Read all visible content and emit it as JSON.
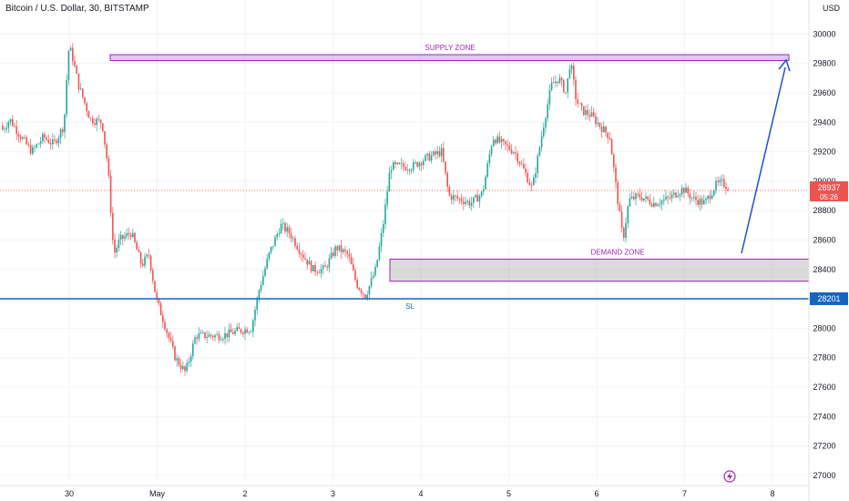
{
  "header": {
    "title": "Bitcoin / U.S. Dollar, 30, BITSTAMP",
    "currency": "USD"
  },
  "colors": {
    "up": "#26a69a",
    "down": "#ef5350",
    "zone_stroke": "#9c27b0",
    "zone_label": "#9c27b0",
    "sl_line": "#1565c0",
    "arrow": "#1e4fd8",
    "grid": "#f0f3fa",
    "price_badge": "#ef5350",
    "sl_badge": "#1565c0"
  },
  "chart_data": {
    "type": "candlestick",
    "x_ticks": [
      "30",
      "May",
      "2",
      "3",
      "4",
      "5",
      "6",
      "7",
      "8"
    ],
    "y_ticks": [
      27000,
      27200,
      27400,
      27600,
      27800,
      28000,
      28200,
      28400,
      28600,
      28800,
      29000,
      29200,
      29400,
      29600,
      29800,
      30000
    ],
    "ylim": [
      26950,
      30120
    ],
    "series_path": [
      [
        0.0,
        29350
      ],
      [
        0.05,
        29420
      ],
      [
        0.12,
        29310
      ],
      [
        0.2,
        29200
      ],
      [
        0.28,
        29300
      ],
      [
        0.35,
        29250
      ],
      [
        0.42,
        29380
      ],
      [
        0.45,
        29890
      ],
      [
        0.47,
        29880
      ],
      [
        0.52,
        29650
      ],
      [
        0.6,
        29420
      ],
      [
        0.68,
        29400
      ],
      [
        0.72,
        29100
      ],
      [
        0.76,
        28500
      ],
      [
        0.8,
        28600
      ],
      [
        0.88,
        28650
      ],
      [
        0.95,
        28430
      ],
      [
        1.0,
        28500
      ],
      [
        1.05,
        28200
      ],
      [
        1.1,
        28050
      ],
      [
        1.18,
        27800
      ],
      [
        1.25,
        27700
      ],
      [
        1.32,
        27950
      ],
      [
        1.4,
        27950
      ],
      [
        1.5,
        27950
      ],
      [
        1.6,
        27980
      ],
      [
        1.7,
        28000
      ],
      [
        1.75,
        28250
      ],
      [
        1.82,
        28500
      ],
      [
        1.9,
        28700
      ],
      [
        1.96,
        28650
      ],
      [
        2.05,
        28500
      ],
      [
        2.12,
        28400
      ],
      [
        2.2,
        28400
      ],
      [
        2.28,
        28550
      ],
      [
        2.36,
        28500
      ],
      [
        2.42,
        28300
      ],
      [
        2.48,
        28220
      ],
      [
        2.55,
        28400
      ],
      [
        2.6,
        28700
      ],
      [
        2.65,
        29100
      ],
      [
        2.72,
        29100
      ],
      [
        2.8,
        29100
      ],
      [
        2.88,
        29150
      ],
      [
        3.0,
        29200
      ],
      [
        3.05,
        28900
      ],
      [
        3.12,
        28880
      ],
      [
        3.2,
        28850
      ],
      [
        3.28,
        28920
      ],
      [
        3.35,
        29300
      ],
      [
        3.42,
        29250
      ],
      [
        3.5,
        29200
      ],
      [
        3.55,
        29100
      ],
      [
        3.62,
        28950
      ],
      [
        3.7,
        29400
      ],
      [
        3.75,
        29650
      ],
      [
        3.8,
        29700
      ],
      [
        3.85,
        29600
      ],
      [
        3.88,
        29820
      ],
      [
        3.92,
        29550
      ],
      [
        3.96,
        29480
      ],
      [
        4.02,
        29450
      ],
      [
        4.08,
        29380
      ],
      [
        4.15,
        29300
      ],
      [
        4.2,
        28900
      ],
      [
        4.24,
        28600
      ],
      [
        4.28,
        28870
      ],
      [
        4.35,
        28900
      ],
      [
        4.45,
        28850
      ],
      [
        4.55,
        28880
      ],
      [
        4.65,
        28950
      ],
      [
        4.72,
        28880
      ],
      [
        4.8,
        28850
      ],
      [
        4.87,
        28970
      ],
      [
        4.92,
        28990
      ],
      [
        4.98,
        28940
      ]
    ],
    "last_price": 28937,
    "countdown": "05:26",
    "supply_zone": {
      "label": "SUPPLY ZONE",
      "low": 29820,
      "high": 29860
    },
    "demand_zone": {
      "label": "DEMAND ZONE",
      "low": 28320,
      "high": 28470
    },
    "stop_loss": {
      "label": "SL",
      "price": 28201
    }
  }
}
